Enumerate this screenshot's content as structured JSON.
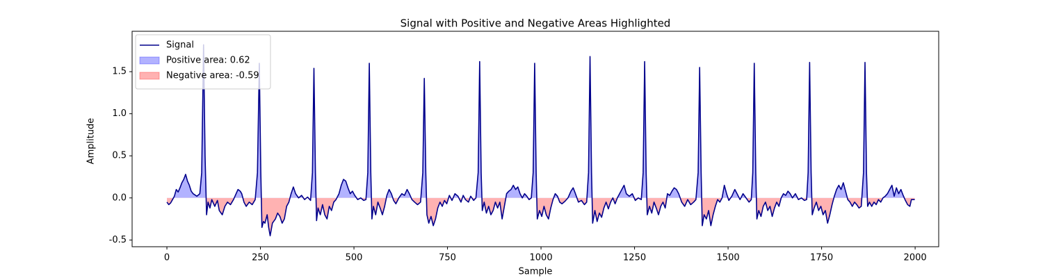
{
  "chart_data": {
    "type": "line",
    "title": "Signal with Positive and Negative Areas Highlighted",
    "xlabel": "Sample",
    "ylabel": "Amplitude",
    "xlim": [
      -93,
      2063
    ],
    "ylim": [
      -0.58,
      1.98
    ],
    "xticks": [
      0,
      250,
      500,
      750,
      1000,
      1250,
      1500,
      1750,
      2000
    ],
    "yticks": [
      -0.5,
      {
        "value": 0,
        "label": "0.0"
      },
      0.5,
      {
        "value": 1,
        "label": "1.0"
      },
      1.5
    ],
    "legend": "upper left",
    "x": [
      0,
      5,
      10,
      15,
      20,
      25,
      30,
      35,
      40,
      45,
      50,
      55,
      60,
      65,
      70,
      80,
      88,
      93,
      98,
      102,
      106,
      110,
      115,
      120,
      128,
      135,
      140,
      148,
      155,
      162,
      170,
      178,
      185,
      190,
      196,
      200,
      206,
      212,
      220,
      228,
      236,
      242,
      247,
      251,
      254,
      258,
      262,
      268,
      272,
      276,
      282,
      290,
      296,
      302,
      308,
      314,
      320,
      326,
      332,
      338,
      344,
      352,
      360,
      368,
      376,
      384,
      389,
      393,
      397,
      400,
      404,
      410,
      416,
      422,
      428,
      434,
      440,
      446,
      452,
      460,
      466,
      472,
      478,
      484,
      490,
      496,
      502,
      510,
      518,
      526,
      532,
      537,
      541,
      545,
      548,
      552,
      558,
      564,
      570,
      576,
      582,
      588,
      594,
      600,
      606,
      612,
      620,
      628,
      635,
      642,
      648,
      655,
      662,
      670,
      678,
      684,
      688,
      692,
      695,
      700,
      706,
      712,
      718,
      724,
      730,
      736,
      742,
      748,
      755,
      762,
      770,
      778,
      786,
      792,
      798,
      806,
      812,
      820,
      826,
      832,
      836,
      840,
      843,
      848,
      854,
      860,
      866,
      872,
      878,
      884,
      890,
      896,
      902,
      908,
      914,
      920,
      926,
      932,
      938,
      944,
      950,
      956,
      962,
      968,
      974,
      979,
      983,
      987,
      990,
      996,
      1002,
      1008,
      1014,
      1020,
      1026,
      1032,
      1038,
      1044,
      1050,
      1056,
      1064,
      1072,
      1080,
      1086,
      1092,
      1100,
      1108,
      1116,
      1122,
      1127,
      1131,
      1135,
      1138,
      1144,
      1150,
      1156,
      1162,
      1168,
      1174,
      1180,
      1186,
      1192,
      1198,
      1204,
      1210,
      1216,
      1222,
      1228,
      1236,
      1244,
      1252,
      1260,
      1268,
      1273,
      1277,
      1281,
      1284,
      1290,
      1296,
      1302,
      1308,
      1314,
      1320,
      1326,
      1332,
      1338,
      1344,
      1350,
      1356,
      1362,
      1368,
      1376,
      1384,
      1392,
      1400,
      1408,
      1414,
      1420,
      1424,
      1428,
      1431,
      1436,
      1442,
      1448,
      1454,
      1460,
      1466,
      1472,
      1478,
      1484,
      1490,
      1496,
      1502,
      1510,
      1518,
      1524,
      1532,
      1540,
      1548,
      1556,
      1562,
      1566,
      1570,
      1574,
      1577,
      1582,
      1588,
      1594,
      1600,
      1606,
      1612,
      1618,
      1624,
      1630,
      1636,
      1642,
      1648,
      1654,
      1660,
      1666,
      1672,
      1680,
      1688,
      1696,
      1704,
      1710,
      1714,
      1718,
      1722,
      1725,
      1730,
      1736,
      1742,
      1748,
      1754,
      1760,
      1766,
      1772,
      1778,
      1784,
      1790,
      1796,
      1802,
      1808,
      1814,
      1820,
      1826,
      1832,
      1838,
      1844,
      1850,
      1856,
      1862,
      1866,
      1870,
      1873,
      1878,
      1884,
      1890,
      1896,
      1902,
      1908,
      1914,
      1920,
      1926,
      1932,
      1938,
      1944,
      1950,
      1956,
      1962,
      1968,
      1974,
      1980,
      1986,
      1990,
      1995,
      1999
    ],
    "series": [
      {
        "name": "Signal",
        "color": "#00008b",
        "values": [
          -0.05,
          -0.08,
          -0.06,
          -0.02,
          0.02,
          0.1,
          0.07,
          0.12,
          0.18,
          0.22,
          0.28,
          0.2,
          0.15,
          0.08,
          0.05,
          0.02,
          0.05,
          0.3,
          1.82,
          0.5,
          -0.2,
          -0.05,
          -0.12,
          -0.02,
          -0.1,
          -0.03,
          -0.15,
          -0.2,
          -0.1,
          -0.05,
          -0.08,
          -0.02,
          0.05,
          0.1,
          0.08,
          0.05,
          -0.05,
          -0.1,
          -0.05,
          -0.08,
          -0.02,
          0.3,
          1.6,
          0.3,
          -0.35,
          -0.28,
          -0.3,
          -0.2,
          -0.35,
          -0.45,
          -0.3,
          -0.25,
          -0.18,
          -0.22,
          -0.3,
          -0.25,
          -0.1,
          -0.05,
          0.05,
          0.13,
          0.05,
          0.0,
          0.03,
          -0.02,
          0.01,
          -0.03,
          0.3,
          1.54,
          0.3,
          -0.27,
          -0.12,
          -0.2,
          -0.08,
          -0.2,
          -0.25,
          -0.1,
          -0.15,
          -0.05,
          -0.02,
          0.05,
          0.15,
          0.22,
          0.2,
          0.12,
          0.05,
          0.08,
          0.03,
          -0.02,
          0.0,
          -0.03,
          -0.02,
          0.3,
          1.6,
          0.3,
          -0.25,
          -0.1,
          -0.2,
          -0.05,
          -0.12,
          -0.2,
          -0.1,
          0.03,
          0.1,
          0.05,
          -0.03,
          -0.07,
          0.0,
          0.05,
          0.03,
          0.1,
          0.05,
          -0.02,
          -0.05,
          -0.08,
          -0.05,
          0.3,
          1.42,
          0.3,
          -0.2,
          -0.3,
          -0.22,
          -0.33,
          -0.25,
          -0.12,
          -0.05,
          -0.1,
          -0.03,
          -0.07,
          0.03,
          -0.03,
          0.05,
          0.02,
          -0.05,
          0.03,
          -0.02,
          -0.05,
          0.02,
          -0.03,
          0.0,
          0.3,
          1.62,
          0.3,
          -0.15,
          -0.05,
          -0.18,
          -0.1,
          -0.2,
          -0.15,
          -0.05,
          -0.12,
          -0.05,
          -0.25,
          -0.1,
          0.05,
          0.08,
          0.1,
          0.15,
          0.1,
          0.13,
          0.05,
          0.0,
          0.05,
          0.02,
          -0.02,
          0.0,
          0.3,
          1.6,
          0.3,
          -0.25,
          -0.15,
          -0.22,
          -0.1,
          -0.2,
          -0.25,
          -0.12,
          -0.02,
          0.05,
          0.02,
          -0.05,
          -0.07,
          -0.04,
          0.0,
          0.08,
          0.12,
          0.05,
          -0.05,
          -0.03,
          -0.08,
          -0.05,
          0.3,
          1.68,
          0.3,
          -0.3,
          -0.15,
          -0.28,
          -0.18,
          -0.23,
          -0.12,
          -0.05,
          -0.13,
          -0.05,
          0.0,
          -0.07,
          0.0,
          0.05,
          0.1,
          0.15,
          0.05,
          0.02,
          0.05,
          -0.03,
          0.0,
          -0.02,
          0.3,
          1.62,
          0.3,
          -0.2,
          -0.1,
          -0.18,
          -0.05,
          -0.12,
          -0.2,
          -0.1,
          -0.05,
          -0.12,
          0.05,
          0.03,
          0.08,
          0.12,
          0.1,
          0.05,
          -0.05,
          -0.1,
          -0.02,
          -0.08,
          -0.05,
          -0.02,
          0.3,
          1.55,
          0.3,
          -0.33,
          -0.2,
          -0.25,
          -0.15,
          -0.33,
          -0.2,
          -0.1,
          -0.02,
          -0.05,
          0.0,
          0.15,
          0.05,
          -0.03,
          0.02,
          0.1,
          0.05,
          -0.02,
          0.05,
          0.0,
          -0.05,
          -0.02,
          0.3,
          1.6,
          0.3,
          -0.25,
          -0.15,
          -0.22,
          -0.1,
          -0.05,
          -0.15,
          -0.1,
          -0.22,
          -0.12,
          -0.05,
          -0.1,
          0.0,
          0.05,
          0.03,
          0.08,
          0.05,
          0.0,
          0.05,
          -0.02,
          0.0,
          -0.03,
          -0.02,
          0.3,
          1.61,
          0.3,
          -0.2,
          -0.12,
          -0.05,
          -0.15,
          -0.1,
          -0.2,
          -0.15,
          -0.3,
          -0.2,
          -0.08,
          0.02,
          0.1,
          0.15,
          0.1,
          0.18,
          0.08,
          -0.02,
          -0.05,
          -0.1,
          -0.05,
          -0.08,
          -0.12,
          -0.1,
          0.3,
          1.61,
          0.3,
          -0.1,
          -0.05,
          -0.1,
          -0.05,
          -0.08,
          -0.02,
          -0.05,
          0.0,
          0.02,
          0.05,
          0.1,
          0.15,
          0.02,
          0.12,
          0.05,
          0.1,
          0.03,
          -0.03,
          -0.08,
          -0.1,
          -0.02,
          -0.02,
          -0.02
        ]
      }
    ],
    "fills": [
      {
        "name": "Positive area: 0.62",
        "color": "rgba(0,0,255,0.3)",
        "side": "positive"
      },
      {
        "name": "Negative area: -0.59",
        "color": "rgba(255,0,0,0.3)",
        "side": "negative"
      }
    ]
  }
}
